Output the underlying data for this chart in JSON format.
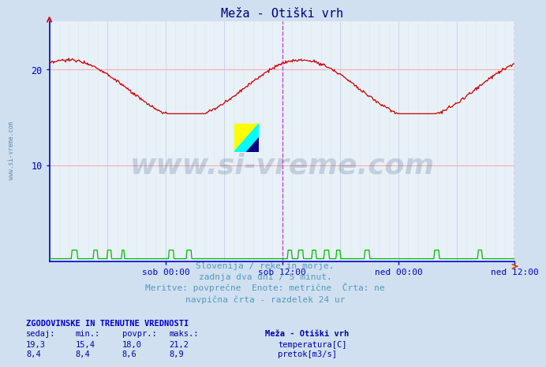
{
  "title": "Meža - Otiški vrh",
  "title_color": "#000080",
  "bg_color": "#d0e0f0",
  "plot_bg_color": "#e8f0f8",
  "temp_color": "#cc0000",
  "flow_color": "#00bb00",
  "axis_color": "#0000cc",
  "tick_color": "#0000aa",
  "vline_color": "#cc44cc",
  "grid_h_color": "#ffaaaa",
  "grid_v_color": "#c8d8e8",
  "grid_v_minor_color": "#dde8f0",
  "x_ticks_labels": [
    "sob 00:00",
    "sob 12:00",
    "ned 00:00",
    "ned 12:00"
  ],
  "y_min": 0,
  "y_max": 25,
  "y_ticks": [
    10,
    20
  ],
  "watermark_text": "www.si-vreme.com",
  "watermark_color": "#1a3a6a",
  "watermark_alpha": 0.18,
  "subtitle_lines": [
    "Slovenija / reke in morje.",
    "zadnja dva dni / 5 minut.",
    "Meritve: povprečne  Enote: metrične  Črta: ne",
    "navpična črta - razdelek 24 ur"
  ],
  "subtitle_color": "#5599bb",
  "table_header": "ZGODOVINSKE IN TRENUTNE VREDNOSTI",
  "table_cols": [
    "sedaj:",
    "min.:",
    "povpr.:",
    "maks.:"
  ],
  "table_row1": [
    "19,3",
    "15,4",
    "18,0",
    "21,2"
  ],
  "table_row2": [
    "8,4",
    "8,4",
    "8,6",
    "8,9"
  ],
  "legend_label1": "temperatura[C]",
  "legend_label2": "pretok[m3/s]",
  "legend_station": "Meža - Otiški vrh",
  "table_color": "#0000aa",
  "table_header_color": "#0000cc",
  "sidebar_text": "www.si-vreme.com"
}
